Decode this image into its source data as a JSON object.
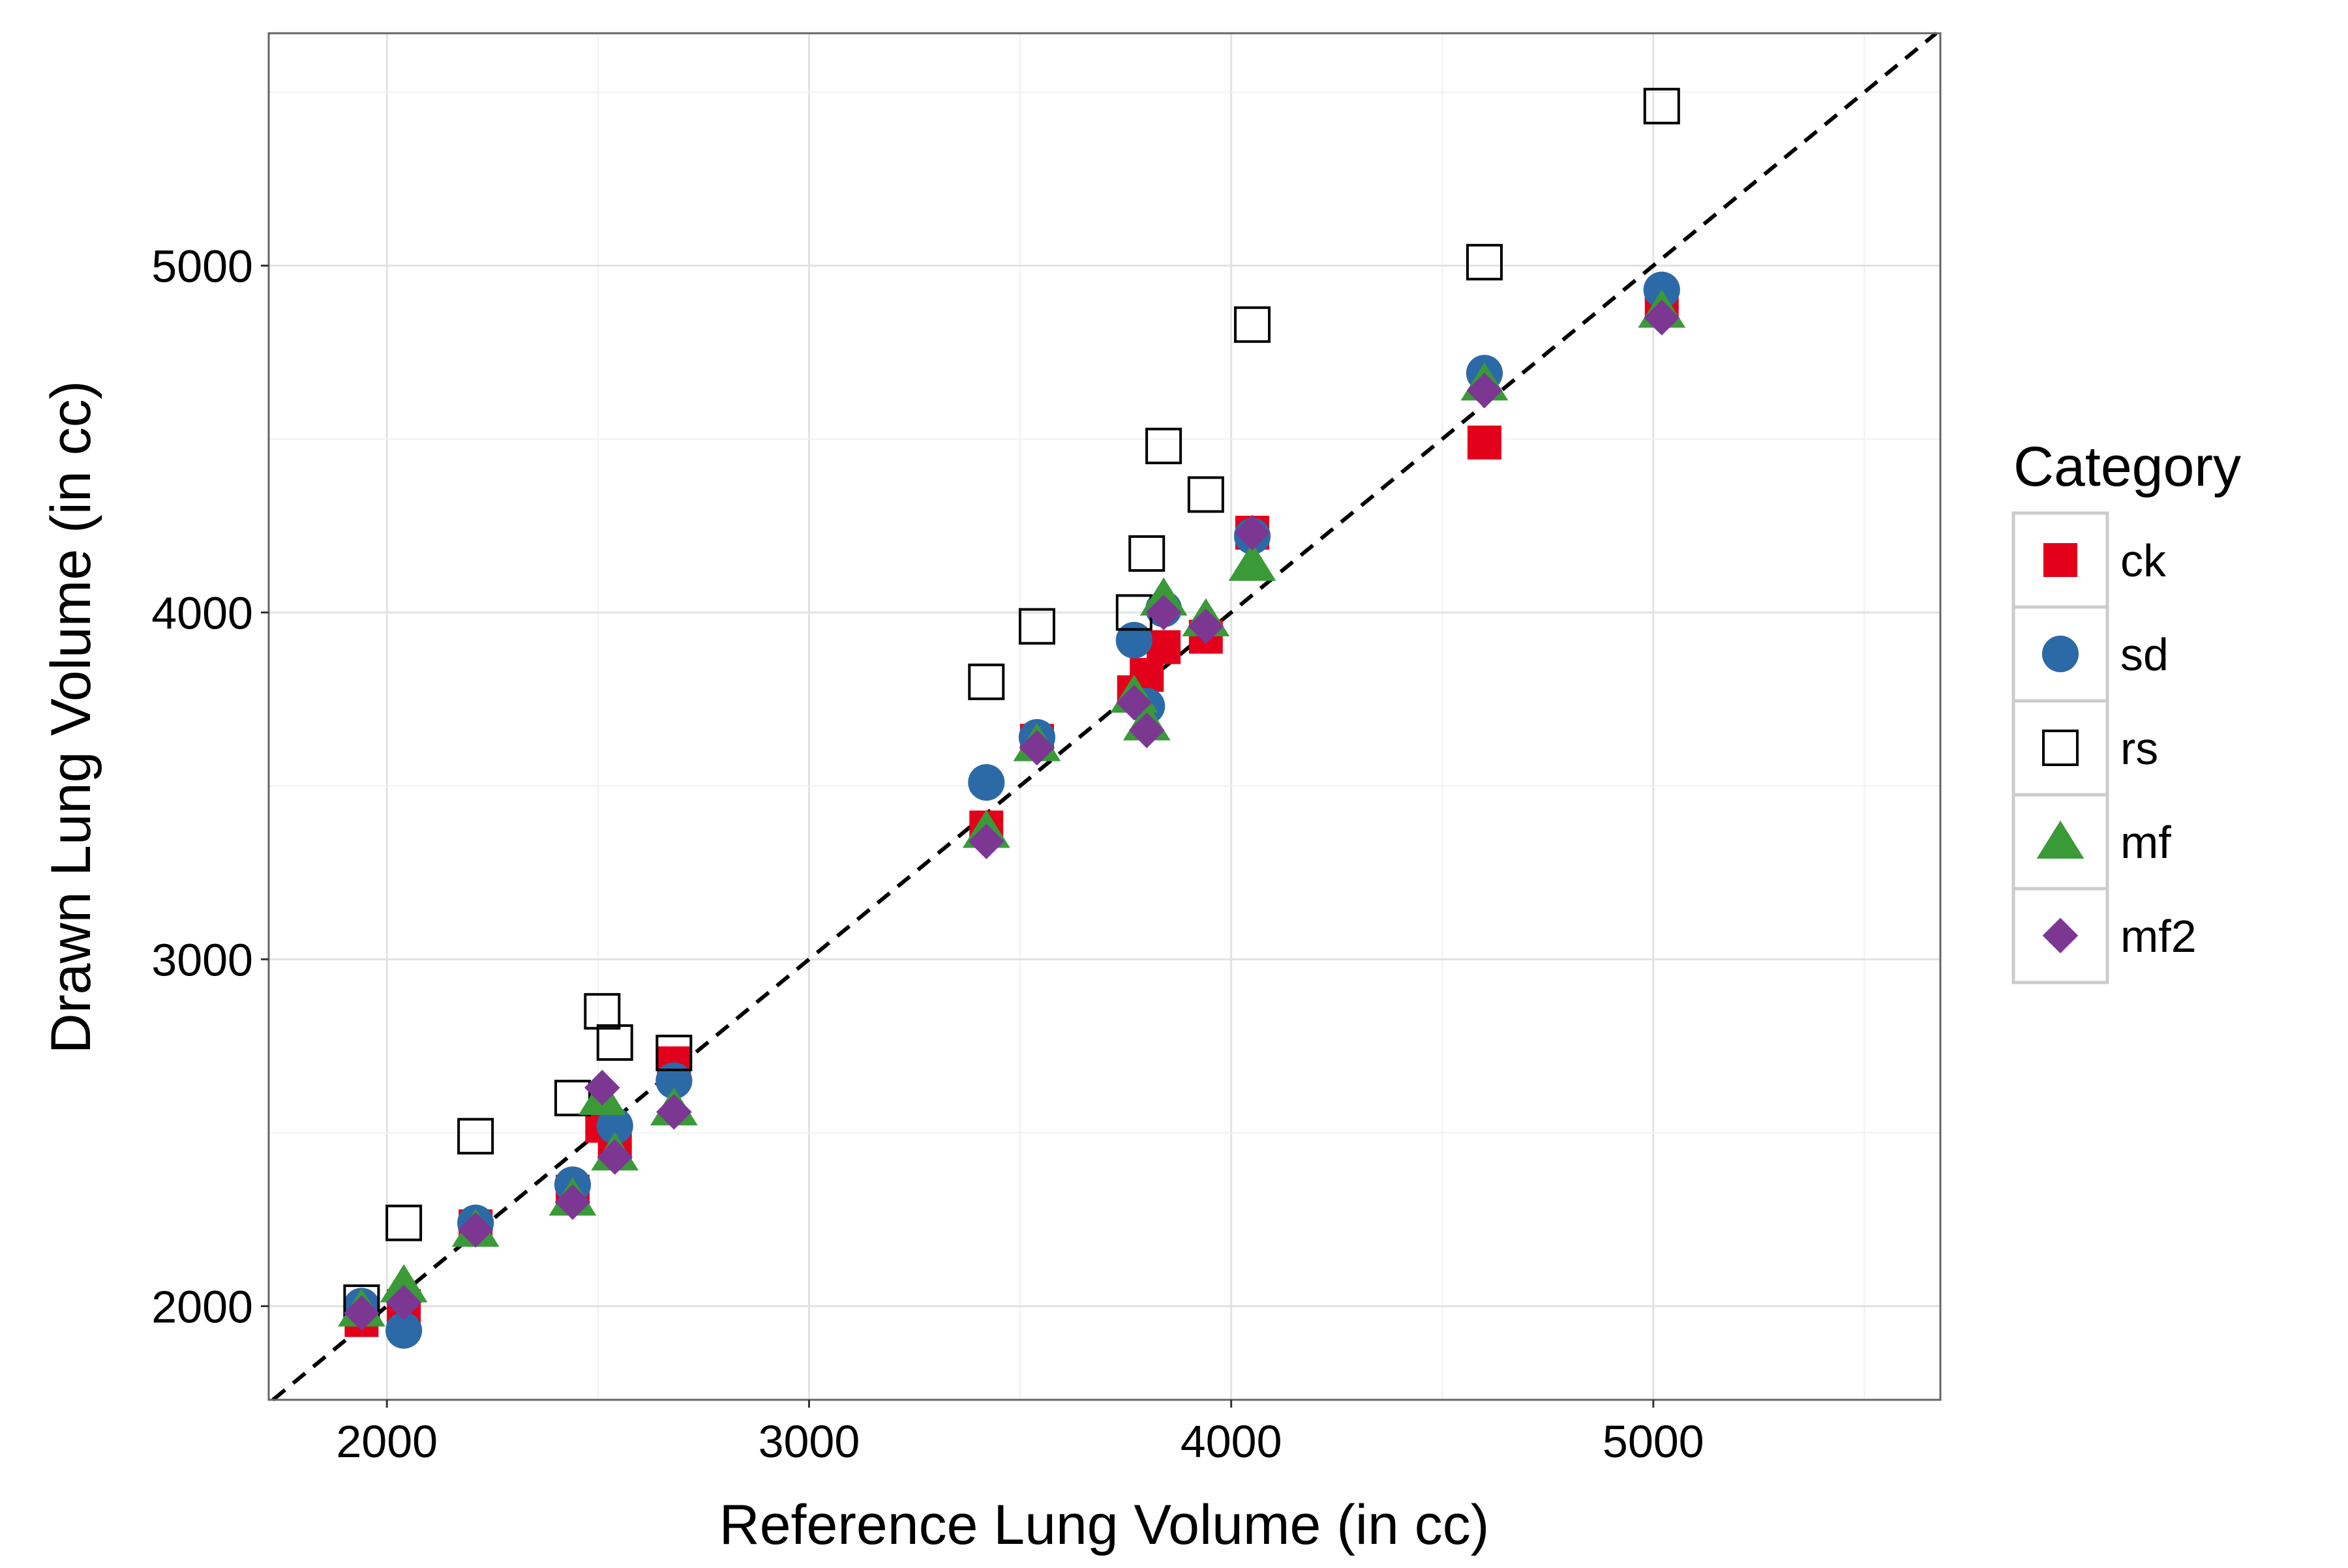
{
  "chart_data": {
    "type": "scatter",
    "title": "",
    "xlabel": "Reference Lung Volume (in cc)",
    "ylabel": "Drawn Lung Volume (in cc)",
    "xlim": [
      1720,
      5680
    ],
    "ylim": [
      1730,
      5670
    ],
    "xticks": [
      2000,
      3000,
      4000,
      5000
    ],
    "yticks": [
      2000,
      3000,
      4000,
      5000
    ],
    "grid": true,
    "reference_line": {
      "style": "dashed",
      "slope": 1,
      "intercept": 0
    },
    "legend": {
      "title": "Category",
      "placement": "right"
    },
    "series": [
      {
        "name": "ck",
        "marker": "square-filled",
        "color": "#e3001b",
        "points": [
          [
            1940,
            1960
          ],
          [
            2040,
            2000
          ],
          [
            2210,
            2230
          ],
          [
            2440,
            2330
          ],
          [
            2510,
            2520
          ],
          [
            2540,
            2460
          ],
          [
            2680,
            2700
          ],
          [
            3420,
            3380
          ],
          [
            3540,
            3630
          ],
          [
            3770,
            3770
          ],
          [
            3800,
            3820
          ],
          [
            3840,
            3900
          ],
          [
            3940,
            3930
          ],
          [
            4050,
            4230
          ],
          [
            4600,
            4490
          ],
          [
            5020,
            4880
          ]
        ]
      },
      {
        "name": "sd",
        "marker": "circle-filled",
        "color": "#2c6aa7",
        "points": [
          [
            1940,
            2000
          ],
          [
            2040,
            1930
          ],
          [
            2210,
            2240
          ],
          [
            2440,
            2350
          ],
          [
            2540,
            2520
          ],
          [
            2680,
            2650
          ],
          [
            3420,
            3510
          ],
          [
            3540,
            3640
          ],
          [
            3770,
            3920
          ],
          [
            3800,
            3730
          ],
          [
            3840,
            4010
          ],
          [
            4050,
            4220
          ],
          [
            4600,
            4690
          ],
          [
            5020,
            4930
          ]
        ]
      },
      {
        "name": "rs",
        "marker": "square-open",
        "color": "#000000",
        "points": [
          [
            1940,
            2010
          ],
          [
            2040,
            2240
          ],
          [
            2210,
            2490
          ],
          [
            2440,
            2600
          ],
          [
            2510,
            2850
          ],
          [
            2540,
            2760
          ],
          [
            2680,
            2730
          ],
          [
            3420,
            3800
          ],
          [
            3540,
            3960
          ],
          [
            3770,
            4000
          ],
          [
            3800,
            4170
          ],
          [
            3840,
            4480
          ],
          [
            3940,
            4340
          ],
          [
            4050,
            4830
          ],
          [
            4600,
            5010
          ],
          [
            5020,
            5460
          ]
        ]
      },
      {
        "name": "mf",
        "marker": "triangle-filled",
        "color": "#3a9a38",
        "points": [
          [
            1940,
            1990
          ],
          [
            2040,
            2060
          ],
          [
            2210,
            2220
          ],
          [
            2440,
            2310
          ],
          [
            2510,
            2600
          ],
          [
            2540,
            2440
          ],
          [
            2680,
            2570
          ],
          [
            3420,
            3370
          ],
          [
            3540,
            3620
          ],
          [
            3770,
            3760
          ],
          [
            3800,
            3680
          ],
          [
            3840,
            4040
          ],
          [
            3940,
            3980
          ],
          [
            4050,
            4140
          ],
          [
            4600,
            4660
          ],
          [
            5020,
            4870
          ]
        ]
      },
      {
        "name": "mf2",
        "marker": "diamond-filled",
        "color": "#7c3793",
        "points": [
          [
            1940,
            1980
          ],
          [
            2040,
            2010
          ],
          [
            2210,
            2220
          ],
          [
            2440,
            2300
          ],
          [
            2510,
            2630
          ],
          [
            2540,
            2430
          ],
          [
            2680,
            2560
          ],
          [
            3420,
            3340
          ],
          [
            3540,
            3610
          ],
          [
            3770,
            3740
          ],
          [
            3800,
            3660
          ],
          [
            3840,
            4000
          ],
          [
            3940,
            3960
          ],
          [
            4050,
            4230
          ],
          [
            4600,
            4640
          ],
          [
            5020,
            4850
          ]
        ]
      }
    ]
  }
}
